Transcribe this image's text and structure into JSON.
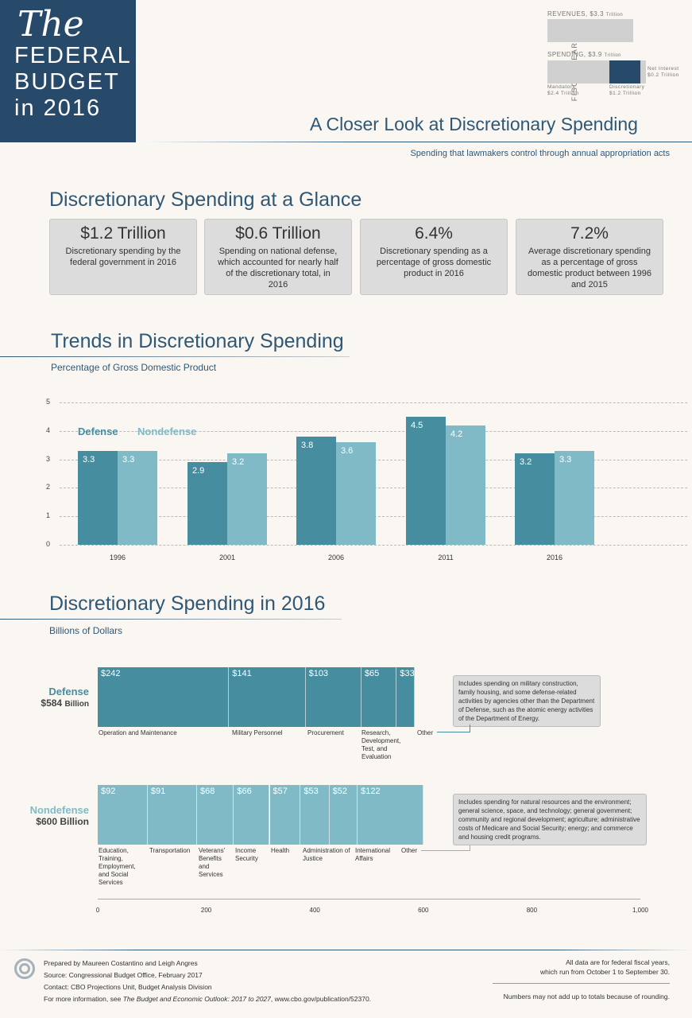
{
  "title": {
    "the": "The",
    "line1": "FEDERAL",
    "line2": "BUDGET",
    "line3": "in 2016"
  },
  "overview": {
    "vertical_label": "FISCAL YEAR 2016",
    "revenues": "REVENUES, $3.3",
    "revenues_unit": "Trillion",
    "spending": "SPENDING, $3.9",
    "spending_unit": "Trillion",
    "mandatory": "Mandatory",
    "mandatory_val": "$2.4 Trillion",
    "discretionary": "Discretionary",
    "discretionary_val": "$1.2 Trillion",
    "net_interest": "Net Interest",
    "net_interest_val": "$0.2 Trillion"
  },
  "headline": "A Closer Look at Discretionary Spending",
  "subheadline": "Spending that lawmakers control through annual appropriation acts",
  "glance": {
    "title": "Discretionary Spending at a Glance",
    "cards": [
      {
        "big": "$1.2 Trillion",
        "desc": "Discretionary spending by the federal government in 2016"
      },
      {
        "big": "$0.6 Trillion",
        "desc": "Spending on national defense, which accounted for nearly half of the discretionary total, in 2016"
      },
      {
        "big": "6.4%",
        "desc": "Discretionary spending as a percentage of gross domestic product in 2016"
      },
      {
        "big": "7.2%",
        "desc": "Average discretionary spending as a percentage of gross domestic product between 1996 and 2015"
      }
    ]
  },
  "colors": {
    "defense": "#468d9f",
    "nondefense": "#7fbac6",
    "navy": "#274a6a"
  },
  "chart_data": [
    {
      "type": "bar",
      "title": "Trends in Discretionary Spending",
      "ylabel": "Percentage of Gross Domestic Product",
      "categories": [
        "1996",
        "2001",
        "2006",
        "2011",
        "2016"
      ],
      "ylim": [
        0,
        5
      ],
      "yticks": [
        "0",
        "1",
        "2",
        "3",
        "4",
        "5"
      ],
      "legend": "top-left",
      "series": [
        {
          "name": "Defense",
          "values": [
            3.3,
            2.9,
            3.8,
            4.5,
            3.2
          ],
          "labels": [
            "3.3",
            "2.9",
            "3.8",
            "4.5",
            "3.2"
          ]
        },
        {
          "name": "Nondefense",
          "values": [
            3.3,
            3.2,
            3.6,
            4.2,
            3.3
          ],
          "labels": [
            "3.3",
            "3.2",
            "3.6",
            "4.2",
            "3.3"
          ]
        }
      ]
    },
    {
      "type": "bar",
      "title": "Discretionary Spending in 2016",
      "xlabel": "Billions of Dollars",
      "xlim": [
        0,
        1000
      ],
      "xticks": [
        "0",
        "200",
        "400",
        "600",
        "800",
        "1,000"
      ],
      "groups": [
        {
          "name": "Defense",
          "total": "$584",
          "unit": "Billion",
          "note": "Includes spending on military construction, family housing, and some defense-related activities by agencies other than the Department of Defense, such as the atomic energy activities of the Department of Energy.",
          "segments": [
            {
              "label": "Operation and Maintenance",
              "value": 242,
              "text": "$242"
            },
            {
              "label": "Military Personnel",
              "value": 141,
              "text": "$141"
            },
            {
              "label": "Procurement",
              "value": 103,
              "text": "$103"
            },
            {
              "label": "Research, Development, Test, and Evaluation",
              "value": 65,
              "text": "$65"
            },
            {
              "label": "Other",
              "value": 33,
              "text": "$33"
            }
          ]
        },
        {
          "name": "Nondefense",
          "total": "$600 Billion",
          "unit": "",
          "note": "Includes spending for natural resources and the environment; general science, space, and technology; general government; community and regional development; agriculture; administrative costs of Medicare and Social Security; energy; and commerce and housing credit programs.",
          "segments": [
            {
              "label": "Education, Training, Employment, and Social Services",
              "value": 92,
              "text": "$92"
            },
            {
              "label": "Transportation",
              "value": 91,
              "text": "$91"
            },
            {
              "label": "Veterans' Benefits and Services",
              "value": 68,
              "text": "$68"
            },
            {
              "label": "Income Security",
              "value": 66,
              "text": "$66"
            },
            {
              "label": "Health",
              "value": 57,
              "text": "$57"
            },
            {
              "label": "Administration of Justice",
              "value": 53,
              "text": "$53"
            },
            {
              "label": "International Affairs",
              "value": 52,
              "text": "$52"
            },
            {
              "label": "Other",
              "value": 122,
              "text": "$122"
            }
          ]
        }
      ]
    }
  ],
  "footer": {
    "prepared": "Prepared by Maureen Costantino and Leigh Angres",
    "source": "Source: Congressional Budget Office, February 2017",
    "contact": "Contact: CBO Projections Unit, Budget Analysis Division",
    "more_prefix": "For more information, see ",
    "more_title": "The Budget and Economic Outlook: 2017 to 2027",
    "more_suffix": ", www.cbo.gov/publication/52370.",
    "fiscal1": "All data are for federal fiscal years,",
    "fiscal2": "which run from October 1 to September 30.",
    "rounding": "Numbers may not add up to totals because of rounding."
  }
}
